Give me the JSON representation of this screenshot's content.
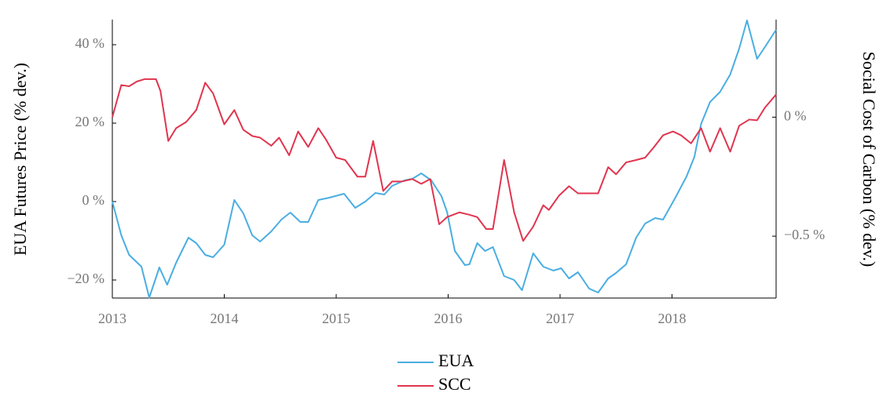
{
  "chart_data": {
    "type": "line",
    "y_label": "EUA Futures Price (% dev.)",
    "y2_label": "Social Cost of Carbon (% dev.)",
    "xlim": [
      2013,
      2018.93
    ],
    "xticks": [
      2013,
      2014,
      2015,
      2016,
      2017,
      2018
    ],
    "ylim": [
      -24.6,
      46.4
    ],
    "yticks": [
      {
        "value": -20,
        "label": "−20 %"
      },
      {
        "value": 0,
        "label": "0 %"
      },
      {
        "value": 20,
        "label": "20 %"
      },
      {
        "value": 40,
        "label": "40 %"
      }
    ],
    "y2lim": [
      -0.76,
      0.41
    ],
    "y2ticks": [
      {
        "value": -0.5,
        "label": "−0.5 %"
      },
      {
        "value": 0,
        "label": "0 %"
      }
    ],
    "legend": "bottom",
    "series": [
      {
        "name": "EUA",
        "color": "#4aaee2",
        "x": [
          2013,
          2013.08,
          2013.15,
          2013.26,
          2013.33,
          2013.42,
          2013.49,
          2013.57,
          2013.68,
          2013.75,
          2013.83,
          2013.9,
          2014,
          2014.09,
          2014.17,
          2014.25,
          2014.32,
          2014.42,
          2014.51,
          2014.59,
          2014.68,
          2014.75,
          2014.84,
          2014.94,
          2015.07,
          2015.17,
          2015.26,
          2015.35,
          2015.43,
          2015.5,
          2015.61,
          2015.68,
          2015.76,
          2015.85,
          2015.94,
          2015.99,
          2016.06,
          2016.15,
          2016.19,
          2016.26,
          2016.33,
          2016.4,
          2016.5,
          2016.59,
          2016.66,
          2016.76,
          2016.85,
          2016.94,
          2017.01,
          2017.08,
          2017.16,
          2017.26,
          2017.34,
          2017.43,
          2017.5,
          2017.59,
          2017.68,
          2017.76,
          2017.85,
          2017.92,
          2018.03,
          2018.13,
          2018.2,
          2018.26,
          2018.34,
          2018.43,
          2018.52,
          2018.6,
          2018.67,
          2018.76,
          2018.83,
          2018.93
        ],
        "values": [
          0,
          -8.6,
          -13.6,
          -16.6,
          -24.5,
          -16.8,
          -21.2,
          -15.6,
          -9.2,
          -10.6,
          -13.6,
          -14.2,
          -11,
          0.4,
          -3,
          -8.6,
          -10.2,
          -7.6,
          -4.6,
          -2.8,
          -5.2,
          -5.2,
          0.4,
          1,
          2,
          -1.6,
          0,
          2.2,
          1.8,
          4,
          5.4,
          5.8,
          7.2,
          5.4,
          1.4,
          -2.6,
          -12.6,
          -16.2,
          -16,
          -10.6,
          -12.6,
          -11.6,
          -19,
          -20,
          -22.6,
          -13.2,
          -16.6,
          -17.6,
          -17,
          -19.6,
          -18,
          -22.2,
          -23.2,
          -19.6,
          -18.2,
          -16,
          -9.2,
          -5.6,
          -4.2,
          -4.6,
          1,
          6.4,
          11.4,
          19.8,
          25.4,
          28,
          32.4,
          39,
          46.2,
          36.4,
          39.4,
          43.8
        ]
      },
      {
        "name": "SCC",
        "color": "#e0354f",
        "axis": "y2",
        "x": [
          2013,
          2013.08,
          2013.15,
          2013.22,
          2013.29,
          2013.39,
          2013.43,
          2013.5,
          2013.57,
          2013.66,
          2013.75,
          2013.83,
          2013.9,
          2014,
          2014.09,
          2014.17,
          2014.25,
          2014.32,
          2014.42,
          2014.49,
          2014.58,
          2014.66,
          2014.75,
          2014.84,
          2014.91,
          2015,
          2015.08,
          2015.19,
          2015.26,
          2015.33,
          2015.42,
          2015.5,
          2015.59,
          2015.68,
          2015.76,
          2015.84,
          2015.92,
          2015.99,
          2016.1,
          2016.19,
          2016.26,
          2016.34,
          2016.4,
          2016.5,
          2016.59,
          2016.67,
          2016.76,
          2016.85,
          2016.9,
          2016.99,
          2017.08,
          2017.16,
          2017.26,
          2017.34,
          2017.43,
          2017.5,
          2017.59,
          2017.68,
          2017.76,
          2017.84,
          2017.92,
          2018.01,
          2018.08,
          2018.17,
          2018.26,
          2018.34,
          2018.43,
          2018.52,
          2018.6,
          2018.69,
          2018.76,
          2018.83,
          2018.93
        ],
        "values": [
          0,
          0.135,
          0.13,
          0.15,
          0.16,
          0.16,
          0.11,
          -0.1,
          -0.046,
          -0.02,
          0.03,
          0.145,
          0.1,
          -0.03,
          0.03,
          -0.053,
          -0.079,
          -0.086,
          -0.12,
          -0.086,
          -0.16,
          -0.06,
          -0.125,
          -0.046,
          -0.095,
          -0.17,
          -0.18,
          -0.25,
          -0.25,
          -0.1,
          -0.31,
          -0.27,
          -0.27,
          -0.26,
          -0.28,
          -0.26,
          -0.45,
          -0.42,
          -0.4,
          -0.41,
          -0.42,
          -0.47,
          -0.47,
          -0.18,
          -0.4,
          -0.52,
          -0.46,
          -0.37,
          -0.39,
          -0.33,
          -0.29,
          -0.32,
          -0.32,
          -0.32,
          -0.21,
          -0.24,
          -0.19,
          -0.18,
          -0.17,
          -0.125,
          -0.076,
          -0.06,
          -0.076,
          -0.11,
          -0.046,
          -0.145,
          -0.046,
          -0.145,
          -0.036,
          -0.01,
          -0.013,
          0.04,
          0.095
        ]
      }
    ]
  }
}
